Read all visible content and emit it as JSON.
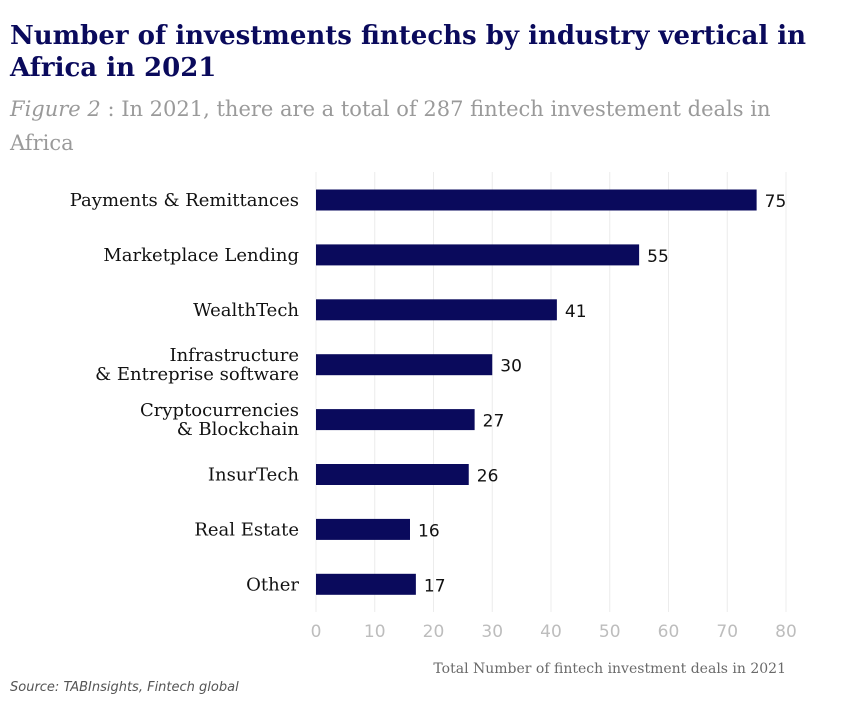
{
  "header": {
    "title": "Number of investments fintechs by industry vertical in Africa in 2021",
    "figure_label": "Figure 2",
    "subtitle_text": " : In 2021, there are a total of 287 fintech investement deals in Africa"
  },
  "footer": {
    "source": "Source: TABInsights, Fintech global"
  },
  "colors": {
    "bar": "#0a0a5c",
    "grid": "#ececec",
    "tick_text": "#bdbdbd",
    "category_text": "#111111",
    "title": "#0a0a5c"
  },
  "chart_data": {
    "type": "bar",
    "orientation": "horizontal",
    "categories": [
      [
        "Payments & Remittances"
      ],
      [
        "Marketplace Lending"
      ],
      [
        "WealthTech"
      ],
      [
        "Infrastructure",
        "& Entreprise software"
      ],
      [
        "Cryptocurrencies",
        "& Blockchain"
      ],
      [
        "InsurTech"
      ],
      [
        "Real Estate"
      ],
      [
        "Other"
      ]
    ],
    "values": [
      75,
      55,
      41,
      30,
      27,
      26,
      16,
      17
    ],
    "xlabel": "Total Number of fintech investment deals in 2021",
    "ylabel": "",
    "xlim": [
      0,
      80
    ],
    "xticks": [
      0,
      10,
      20,
      30,
      40,
      50,
      60,
      70,
      80
    ],
    "grid": "vertical",
    "data_labels": true
  }
}
